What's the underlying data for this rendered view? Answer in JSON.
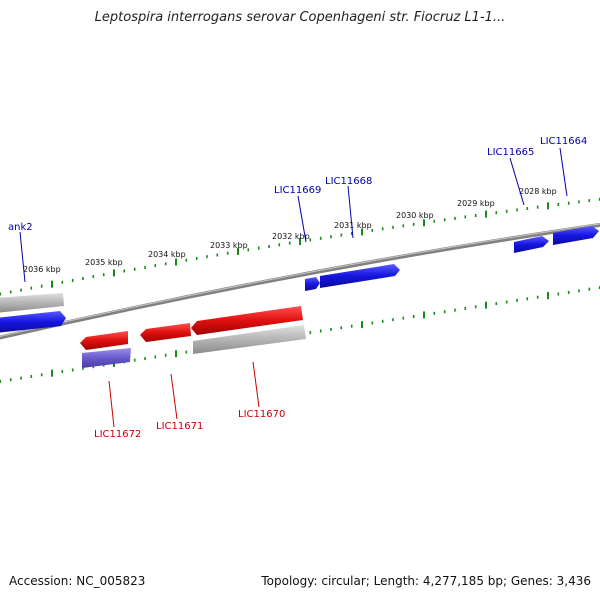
{
  "title": "Leptospira interrogans serovar Copenhageni str. Fiocruz L1-1...",
  "accession": "Accession: NC_005823",
  "summary": "Topology: circular; Length: 4,277,185 bp; Genes: 3,436",
  "colors": {
    "backbone": "#808080",
    "forward_gene": "#1515e0",
    "reverse_gene": "#e01010",
    "pseudo_gene": "#b4b4b4",
    "rna_gene": "#6a5acd",
    "tick": "#1a8a1a",
    "forward_label": "#0000aa",
    "reverse_label": "#cc0000"
  },
  "kbp_labels": [
    "2036 kbp",
    "2035 kbp",
    "2034 kbp",
    "2033 kbp",
    "2032 kbp",
    "2031 kbp",
    "2030 kbp",
    "2029 kbp",
    "2028 kbp"
  ],
  "gene_labels": {
    "forward": [
      "ank2",
      "LIC11669",
      "LIC11668",
      "LIC11665",
      "LIC11664"
    ],
    "reverse": [
      "LIC11672",
      "LIC11671",
      "LIC11670"
    ]
  }
}
